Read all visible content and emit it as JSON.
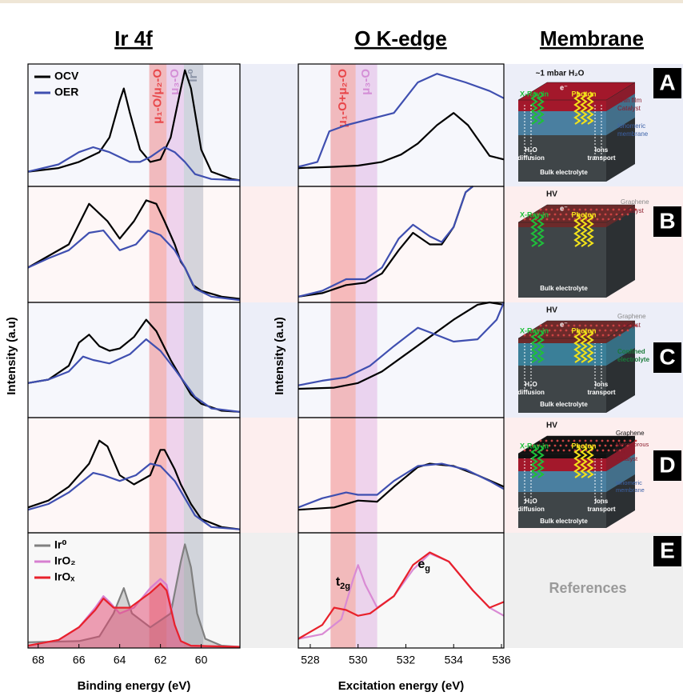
{
  "chart_data": [
    {
      "type": "line",
      "title": "Ir 4f",
      "xlabel": "Binding energy (eV)",
      "ylabel": "Intensity (a.u)",
      "xlim": [
        68.5,
        58.1
      ],
      "xticks": [
        68,
        66,
        64,
        62,
        60
      ],
      "ylim": [
        0,
        1
      ],
      "bands": [
        {
          "label": "μ₁-O/μ₂-O",
          "from": 62.55,
          "to": 61.7,
          "color": "#e8474a"
        },
        {
          "label": "μ₃-O",
          "from": 61.7,
          "to": 60.85,
          "color": "#d48fd6"
        },
        {
          "label": "Ir⁰",
          "from": 60.85,
          "to": 59.9,
          "color": "#8a93a6"
        }
      ],
      "panels": [
        {
          "series": [
            {
              "name": "OCV",
              "color": "#000000",
              "x": [
                68.5,
                67,
                66,
                65,
                64.5,
                64,
                63.8,
                63.5,
                63,
                62.5,
                62,
                61.5,
                61,
                60.8,
                60.5,
                60,
                59.5,
                58.5,
                58.1
              ],
              "values": [
                0.12,
                0.15,
                0.2,
                0.28,
                0.4,
                0.7,
                0.8,
                0.6,
                0.3,
                0.2,
                0.22,
                0.4,
                0.8,
                0.95,
                0.8,
                0.3,
                0.12,
                0.06,
                0.05
              ]
            },
            {
              "name": "OER",
              "color": "#3f4fb0",
              "x": [
                68.5,
                67,
                66,
                65.3,
                64.5,
                63.5,
                63,
                62.5,
                61.8,
                61.3,
                60.8,
                60.3,
                59.5,
                58.1
              ],
              "values": [
                0.12,
                0.18,
                0.28,
                0.32,
                0.28,
                0.2,
                0.2,
                0.24,
                0.32,
                0.28,
                0.2,
                0.1,
                0.06,
                0.05
              ]
            }
          ]
        },
        {
          "series": [
            {
              "color": "#000000",
              "x": [
                68.5,
                67.5,
                66.5,
                65.5,
                65.2,
                64.6,
                64,
                63.3,
                62.7,
                62.2,
                61.8,
                61.3,
                61,
                60.8,
                60.4,
                60,
                59,
                58.1
              ],
              "values": [
                0.3,
                0.4,
                0.5,
                0.85,
                0.8,
                0.7,
                0.55,
                0.7,
                0.88,
                0.85,
                0.7,
                0.5,
                0.35,
                0.3,
                0.15,
                0.1,
                0.05,
                0.03
              ]
            },
            {
              "color": "#3f4fb0",
              "x": [
                68.5,
                67.5,
                66.5,
                65.5,
                64.8,
                64,
                63.2,
                62.6,
                62,
                61.3,
                60.8,
                60.3,
                59.5,
                58.1
              ],
              "values": [
                0.3,
                0.38,
                0.45,
                0.6,
                0.62,
                0.45,
                0.5,
                0.62,
                0.58,
                0.45,
                0.3,
                0.12,
                0.05,
                0.02
              ]
            }
          ]
        },
        {
          "series": [
            {
              "color": "#000000",
              "x": [
                68.5,
                67.5,
                66.5,
                66,
                65.5,
                65,
                64.5,
                64,
                63.3,
                62.7,
                62.2,
                61.5,
                61,
                60.5,
                60,
                59,
                58.1
              ],
              "values": [
                0.3,
                0.33,
                0.45,
                0.65,
                0.72,
                0.62,
                0.58,
                0.6,
                0.7,
                0.85,
                0.75,
                0.5,
                0.35,
                0.2,
                0.12,
                0.06,
                0.05
              ]
            },
            {
              "color": "#3f4fb0",
              "x": [
                68.5,
                67.5,
                66.5,
                65.8,
                65.3,
                64.5,
                63.5,
                62.7,
                62,
                61.3,
                60.8,
                60.3,
                59.5,
                58.1
              ],
              "values": [
                0.3,
                0.33,
                0.4,
                0.53,
                0.5,
                0.47,
                0.55,
                0.68,
                0.58,
                0.42,
                0.3,
                0.18,
                0.08,
                0.05
              ]
            }
          ]
        },
        {
          "series": [
            {
              "color": "#000000",
              "x": [
                68.5,
                67.5,
                66.5,
                65.5,
                65,
                64.6,
                64,
                63.3,
                62.5,
                62,
                61.8,
                61.3,
                61,
                60.5,
                60,
                59,
                58.1
              ],
              "values": [
                0.22,
                0.28,
                0.4,
                0.6,
                0.8,
                0.75,
                0.5,
                0.42,
                0.5,
                0.72,
                0.72,
                0.55,
                0.42,
                0.25,
                0.12,
                0.05,
                0.03
              ]
            },
            {
              "color": "#3f4fb0",
              "x": [
                68.5,
                67.5,
                66.5,
                65.3,
                64.8,
                64,
                63.2,
                62.5,
                62,
                61.3,
                60.8,
                60.3,
                59.5,
                58.1
              ],
              "values": [
                0.2,
                0.25,
                0.35,
                0.52,
                0.5,
                0.45,
                0.5,
                0.6,
                0.58,
                0.45,
                0.3,
                0.15,
                0.05,
                0.03
              ]
            }
          ]
        },
        {
          "series": [
            {
              "name": "Ir⁰",
              "color": "#808080",
              "fill": true,
              "x": [
                68.5,
                66,
                65,
                64.3,
                63.8,
                63.4,
                62.5,
                61.5,
                61,
                60.8,
                60.5,
                60.2,
                59.8,
                59,
                58.1
              ],
              "values": [
                0.05,
                0.06,
                0.1,
                0.3,
                0.52,
                0.3,
                0.18,
                0.3,
                0.75,
                0.9,
                0.7,
                0.3,
                0.08,
                0.02,
                0.01
              ]
            },
            {
              "name": "IrO₂",
              "color": "#d77fd0",
              "fill": true,
              "x": [
                68.5,
                67,
                66,
                65.2,
                64.8,
                64.5,
                64,
                63.3,
                62.5,
                62,
                61.7,
                61.3,
                61,
                60.5,
                58.1
              ],
              "values": [
                0.02,
                0.07,
                0.18,
                0.35,
                0.45,
                0.4,
                0.3,
                0.35,
                0.52,
                0.6,
                0.55,
                0.2,
                0.06,
                0.02,
                0.01
              ]
            },
            {
              "name": "IrOₓ",
              "color": "#e8212b",
              "fill": true,
              "x": [
                68.5,
                67,
                66,
                65.2,
                64.8,
                64.3,
                63.5,
                62.5,
                62,
                61.7,
                61.3,
                61,
                60.5,
                58.1
              ],
              "values": [
                0.02,
                0.07,
                0.18,
                0.33,
                0.43,
                0.35,
                0.35,
                0.48,
                0.56,
                0.5,
                0.2,
                0.06,
                0.02,
                0.01
              ]
            }
          ]
        }
      ]
    },
    {
      "type": "line",
      "title": "O K-edge",
      "xlabel": "Excitation energy (eV)",
      "ylabel": "Intensity (a.u)",
      "xlim": [
        527.5,
        536.1
      ],
      "xticks": [
        528,
        530,
        532,
        534,
        536
      ],
      "ylim": [
        0,
        1
      ],
      "bands": [
        {
          "label": "μ₁-O+μ₂-O",
          "from": 528.85,
          "to": 529.9,
          "color": "#e8474a"
        },
        {
          "label": "μ₃-O",
          "from": 529.9,
          "to": 530.8,
          "color": "#d48fd6"
        }
      ],
      "panels": [
        {
          "series": [
            {
              "color": "#000000",
              "x": [
                527.5,
                529,
                530,
                531,
                531.8,
                532.5,
                533.3,
                534,
                534.6,
                535.5,
                536.1
              ],
              "values": [
                0.15,
                0.16,
                0.17,
                0.2,
                0.26,
                0.35,
                0.5,
                0.6,
                0.5,
                0.25,
                0.22
              ]
            },
            {
              "color": "#3f4fb0",
              "x": [
                527.5,
                528.3,
                528.8,
                529.5,
                530.5,
                531.5,
                532.5,
                533.3,
                534.5,
                535.5,
                536.1
              ],
              "values": [
                0.16,
                0.2,
                0.45,
                0.5,
                0.55,
                0.6,
                0.85,
                0.92,
                0.85,
                0.78,
                0.72
              ]
            }
          ]
        },
        {
          "series": [
            {
              "color": "#000000",
              "x": [
                527.5,
                528.5,
                529.5,
                530.3,
                531,
                531.7,
                532.3,
                533,
                533.5,
                534,
                534.5,
                534.8
              ],
              "values": [
                0.05,
                0.08,
                0.15,
                0.17,
                0.25,
                0.45,
                0.6,
                0.5,
                0.5,
                0.65,
                0.95,
                1.0
              ]
            },
            {
              "color": "#3f4fb0",
              "x": [
                527.5,
                528.5,
                529.5,
                530.3,
                531,
                531.7,
                532.3,
                533,
                533.5,
                534,
                534.5,
                534.8
              ],
              "values": [
                0.05,
                0.1,
                0.2,
                0.2,
                0.3,
                0.55,
                0.67,
                0.57,
                0.52,
                0.65,
                0.95,
                1.0
              ]
            }
          ]
        },
        {
          "series": [
            {
              "color": "#000000",
              "x": [
                527.5,
                529,
                530,
                531,
                532,
                533,
                534,
                535,
                535.5,
                536.1
              ],
              "values": [
                0.25,
                0.26,
                0.3,
                0.4,
                0.55,
                0.7,
                0.85,
                0.98,
                1.0,
                0.98
              ]
            },
            {
              "color": "#3f4fb0",
              "x": [
                527.5,
                528.5,
                529.5,
                530.5,
                531.5,
                532.5,
                533,
                534,
                535,
                535.8,
                536.1
              ],
              "values": [
                0.28,
                0.32,
                0.35,
                0.45,
                0.62,
                0.78,
                0.74,
                0.66,
                0.68,
                0.85,
                1.0
              ]
            }
          ]
        },
        {
          "series": [
            {
              "color": "#000000",
              "x": [
                527.5,
                529,
                530,
                530.8,
                531.5,
                532.5,
                533,
                534,
                535,
                536.1
              ],
              "values": [
                0.2,
                0.22,
                0.28,
                0.27,
                0.4,
                0.57,
                0.6,
                0.58,
                0.5,
                0.4
              ]
            },
            {
              "color": "#3f4fb0",
              "x": [
                527.5,
                528.5,
                529.5,
                530,
                530.8,
                531.5,
                532.5,
                533.5,
                534.5,
                535.5,
                536.1
              ],
              "values": [
                0.22,
                0.3,
                0.35,
                0.33,
                0.33,
                0.45,
                0.58,
                0.6,
                0.55,
                0.45,
                0.38
              ]
            }
          ]
        },
        {
          "series": [
            {
              "color": "#d98ad4",
              "x": [
                527.5,
                528.5,
                529.3,
                529.8,
                530,
                530.3,
                530.8,
                531.5,
                532.3,
                533,
                533.8,
                534.8,
                535.5,
                536.1
              ],
              "values": [
                0.08,
                0.12,
                0.25,
                0.6,
                0.72,
                0.55,
                0.35,
                0.45,
                0.68,
                0.82,
                0.75,
                0.5,
                0.35,
                0.28
              ]
            },
            {
              "color": "#e8212b",
              "x": [
                527.5,
                528.5,
                529,
                529.5,
                530,
                530.5,
                531.5,
                532.3,
                533,
                533.8,
                534.8,
                535.5,
                536.1
              ],
              "values": [
                0.08,
                0.2,
                0.35,
                0.33,
                0.28,
                0.3,
                0.45,
                0.72,
                0.83,
                0.75,
                0.5,
                0.35,
                0.4
              ]
            }
          ],
          "annotations": [
            {
              "text": "t",
              "sub": "2g"
            },
            {
              "text": "e",
              "sub": "g"
            }
          ]
        }
      ]
    }
  ],
  "membrane": {
    "title": "Membrane",
    "panels": [
      {
        "letter": "A",
        "labels": [
          "~1 mbar H₂O",
          "X-Ray in",
          "e⁻",
          "Photon",
          "Thin film",
          "Catalyst",
          "Ionomeric",
          "membrane",
          "H₂O",
          "diffusion",
          "Ions",
          "transport",
          "Bulk electrolyte"
        ]
      },
      {
        "letter": "B",
        "labels": [
          "HV",
          "Graphene",
          "Catalyst",
          "X-Ray in",
          "e⁻",
          "Photon",
          "Bulk electrolyte"
        ]
      },
      {
        "letter": "C",
        "labels": [
          "HV",
          "Graphene",
          "Catalyst",
          "Confined",
          "electrolyte",
          "X-Ray in",
          "e⁻",
          "Photon",
          "H₂O",
          "diffusion",
          "Ions",
          "transport",
          "Bulk electrolyte"
        ]
      },
      {
        "letter": "D",
        "labels": [
          "HV",
          "Graphene",
          "X-Ray in",
          "Photon",
          "Mesoporous",
          "film",
          "Catalyst",
          "Ionomeric",
          "membrane",
          "H₂O",
          "diffusion",
          "Ions",
          "transport",
          "Bulk electrolyte"
        ]
      },
      {
        "letter": "E",
        "labels": [
          "References"
        ]
      }
    ]
  }
}
